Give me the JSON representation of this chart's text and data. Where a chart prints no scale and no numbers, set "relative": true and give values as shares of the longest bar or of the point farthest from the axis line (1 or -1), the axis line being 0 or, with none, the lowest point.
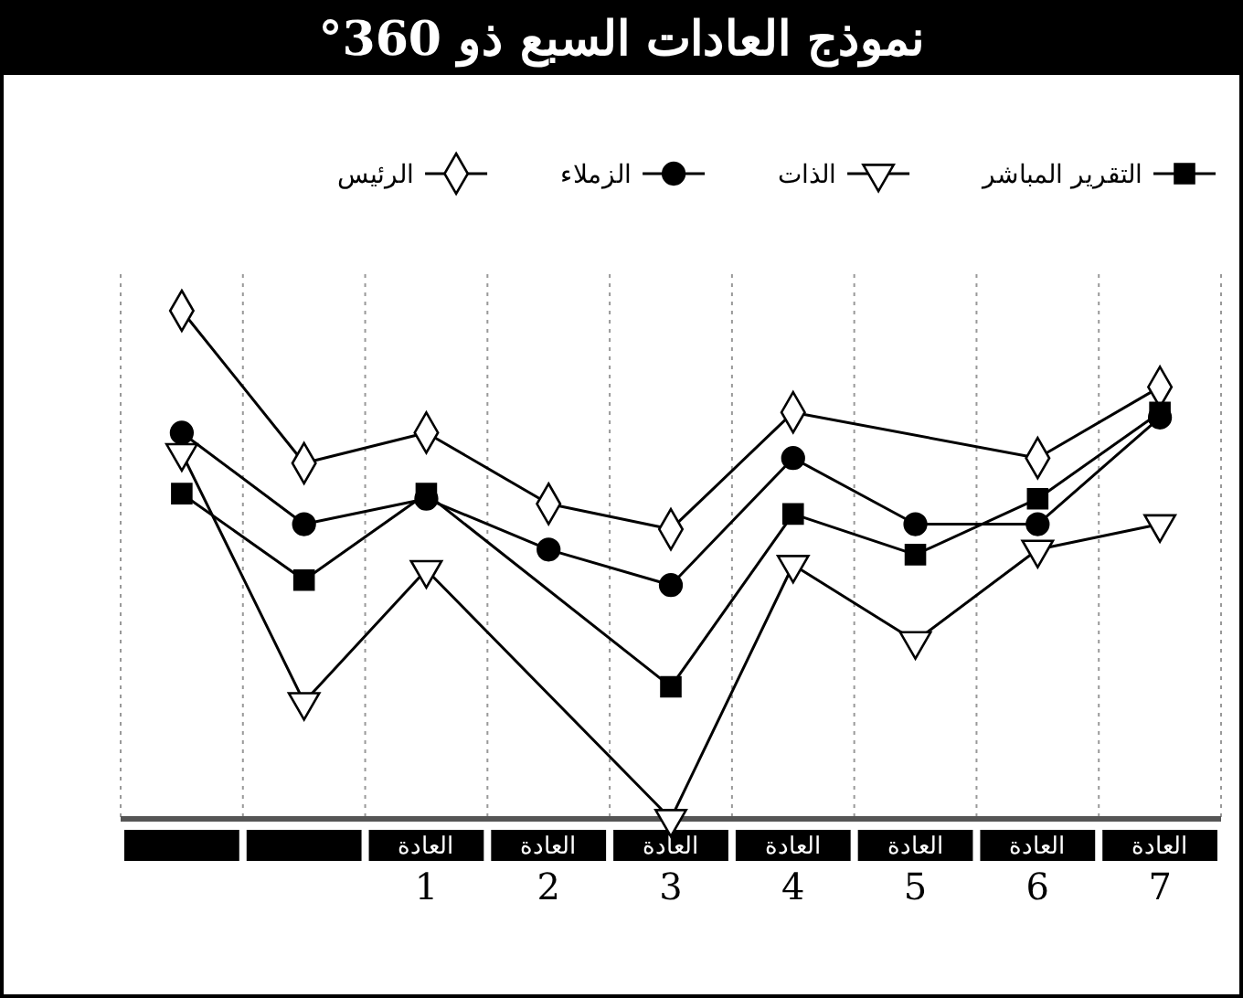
{
  "chart_data": {
    "type": "line",
    "title": "نموذج العادات السبع ذو 360°",
    "relative": true,
    "legend": "top",
    "grid": "x",
    "line_style": "solid",
    "categories": [
      null,
      null,
      "العادة 1",
      "العادة 2",
      "العادة 3",
      "العادة 4",
      "العادة 5",
      "العادة 6",
      "العادة 7"
    ],
    "series": [
      {
        "name": "التقرير المباشر",
        "color": "#000000",
        "marker": "square",
        "values": [
          0.64,
          0.47,
          0.64,
          null,
          0.26,
          0.6,
          0.52,
          0.63,
          0.8
        ]
      },
      {
        "name": "الذات",
        "color": "#000000",
        "marker": "triangle",
        "values": [
          0.72,
          0.23,
          0.49,
          null,
          0.0,
          0.5,
          0.35,
          0.53,
          0.58
        ]
      },
      {
        "name": "الزملاء",
        "color": "#000000",
        "marker": "circle",
        "values": [
          0.76,
          0.58,
          0.63,
          0.53,
          0.46,
          0.71,
          0.58,
          0.58,
          0.79
        ]
      },
      {
        "name": "الرئيس",
        "color": "#000000",
        "marker": "diamond",
        "values": [
          1.0,
          0.7,
          0.76,
          0.62,
          0.57,
          0.8,
          null,
          0.71,
          0.85
        ]
      }
    ]
  }
}
